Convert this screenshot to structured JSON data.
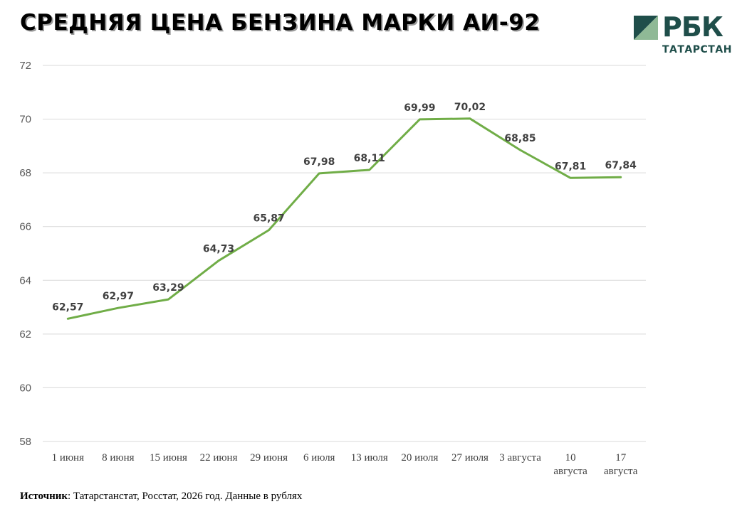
{
  "title": "СРЕДНЯЯ ЦЕНА БЕНЗИНА МАРКИ АИ-92",
  "logo": {
    "word": "РБК",
    "subtitle": "ТАТАРСТАН",
    "mark_colors": [
      "#1f4e4a",
      "#8fb996"
    ]
  },
  "source": {
    "label": "Источник",
    "text": ": Татарстанстат, Росстат, 2026 год. Данные в рублях"
  },
  "colors": {
    "line": "#70ad47",
    "grid": "#d9d9d9"
  },
  "chart_data": {
    "type": "line",
    "title": "СРЕДНЯЯ ЦЕНА БЕНЗИНА МАРКИ АИ-92",
    "xlabel": "",
    "ylabel": "",
    "categories": [
      [
        "1 июня"
      ],
      [
        "8 июня"
      ],
      [
        "15 июня"
      ],
      [
        "22 июня"
      ],
      [
        "29 июня"
      ],
      [
        "6 июля"
      ],
      [
        "13 июля"
      ],
      [
        "20 июля"
      ],
      [
        "27 июля"
      ],
      [
        "3 августа"
      ],
      [
        "10",
        "августа"
      ],
      [
        "17",
        "августа"
      ]
    ],
    "series": [
      {
        "values": [
          62.57,
          62.97,
          63.29,
          64.73,
          65.87,
          67.98,
          68.11,
          69.99,
          70.02,
          68.85,
          67.81,
          67.84
        ],
        "labels": [
          "62,57",
          "62,97",
          "63,29",
          "64,73",
          "65,87",
          "67,98",
          "68,11",
          "69,99",
          "70,02",
          "68,85",
          "67,81",
          "67,84"
        ]
      }
    ],
    "ylim": [
      58,
      72
    ],
    "yticks": [
      58,
      60,
      62,
      64,
      66,
      68,
      70,
      72
    ],
    "grid": true,
    "legend": "none"
  }
}
